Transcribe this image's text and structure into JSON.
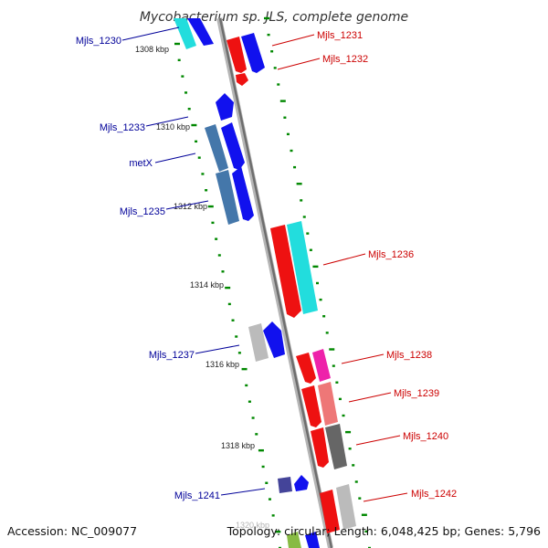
{
  "title": "Mycobacterium sp. JLS, complete genome",
  "footer": {
    "accession": "Accession: NC_009077",
    "stats": "Topology: circular; Length: 6,048,425 bp; Genes: 5,796"
  },
  "ticks": [
    "1308 kbp",
    "1310 kbp",
    "1312 kbp",
    "1314 kbp",
    "1316 kbp",
    "1318 kbp",
    "1320 kbp"
  ],
  "genes_left": [
    "Mjls_1230",
    "Mjls_1233",
    "metX",
    "Mjls_1235",
    "Mjls_1237",
    "Mjls_1241"
  ],
  "genes_right": [
    "Mjls_1231",
    "Mjls_1232",
    "Mjls_1236",
    "Mjls_1238",
    "Mjls_1239",
    "Mjls_1240",
    "Mjls_1242"
  ],
  "colors": {
    "left_label": "#000099",
    "right_label": "#cc0000",
    "tick_dots": "#008800",
    "axis": "#888888"
  }
}
